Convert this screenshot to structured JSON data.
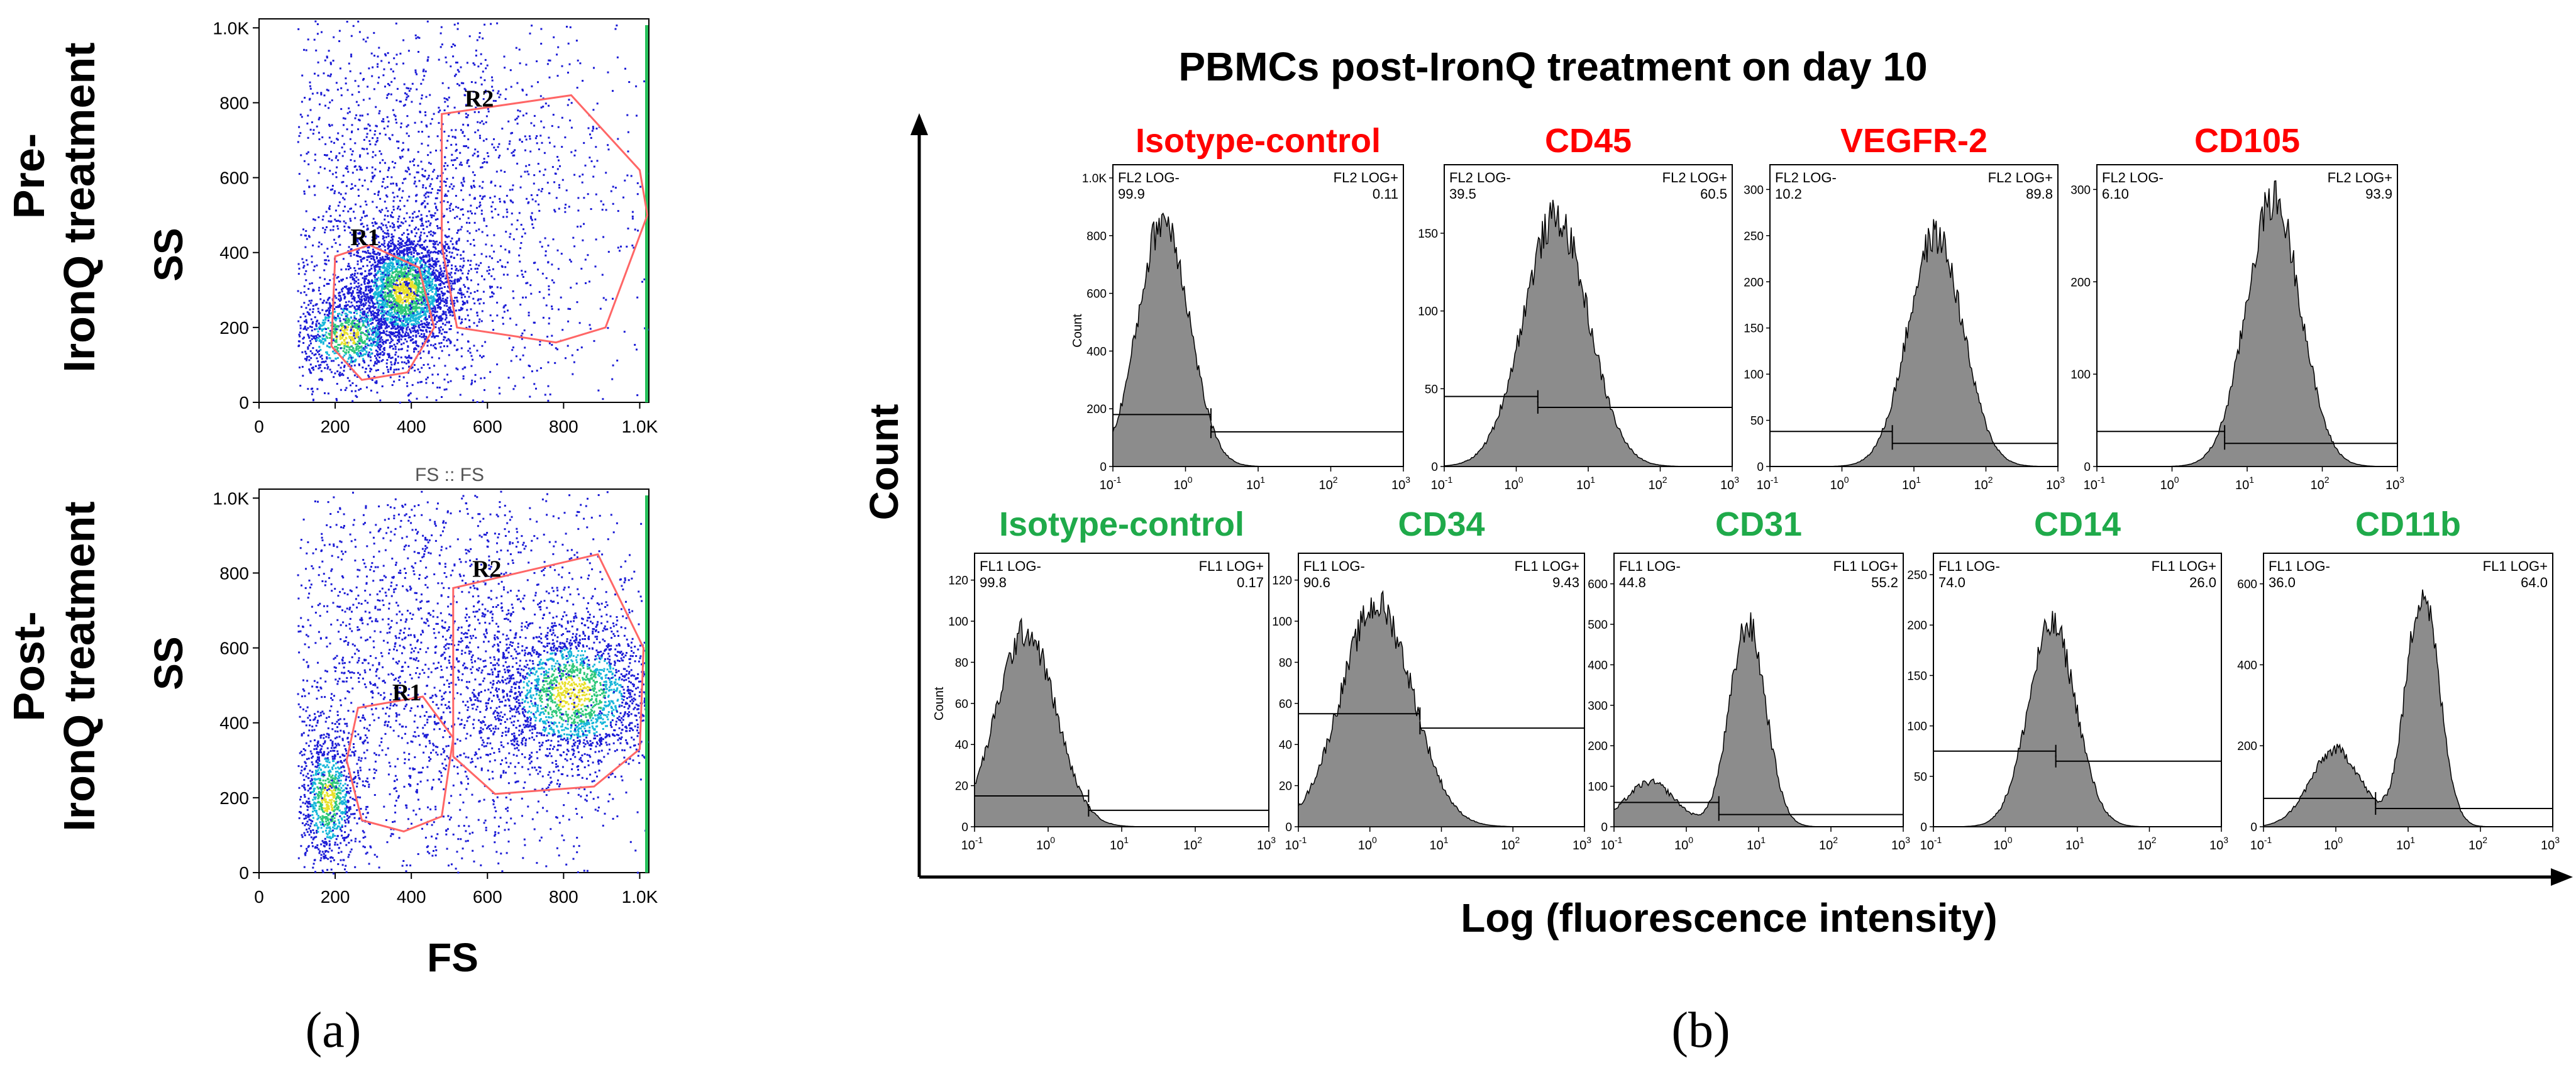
{
  "panel_a": {
    "label": "(a)",
    "x_axis_label": "FS",
    "y_axis_label": "SS",
    "between_plots_label": "FS :: FS",
    "ticks": [
      "0",
      "200",
      "400",
      "600",
      "800",
      "1.0K"
    ],
    "plots": [
      {
        "row_label_line1": "Pre-",
        "row_label_line2": "IronQ treatment",
        "gate1": "R1",
        "gate2": "R2"
      },
      {
        "row_label_line1": "Post-",
        "row_label_line2": "IronQ treatment",
        "gate1": "R1",
        "gate2": "R2"
      }
    ]
  },
  "panel_b": {
    "label": "(b)",
    "title": "PBMCs post-IronQ treatment on day 10",
    "y_axis_label": "Count",
    "x_axis_label": "Log (fluorescence intensity)",
    "x_ticks": [
      "10",
      "10",
      "10",
      "10",
      "10"
    ],
    "x_tick_exps": [
      "-1",
      "0",
      "1",
      "2",
      "3"
    ]
  },
  "colors": {
    "red_title": "#ff0000",
    "green_title": "#1faa4a",
    "hist_fill": "#8c8c8c",
    "gate_line": "#ff6666"
  },
  "chart_data": [
    {
      "type": "scatter",
      "title": "Pre-IronQ treatment",
      "xlabel": "FS",
      "ylabel": "SS",
      "xlim": [
        0,
        1024
      ],
      "ylim": [
        0,
        1024
      ],
      "gates": [
        "R1",
        "R2"
      ]
    },
    {
      "type": "scatter",
      "title": "Post-IronQ treatment",
      "xlabel": "FS",
      "ylabel": "SS",
      "xlim": [
        0,
        1024
      ],
      "ylim": [
        0,
        1024
      ],
      "gates": [
        "R1",
        "R2"
      ]
    },
    {
      "type": "area",
      "title": "Isotype-control",
      "title_color": "red",
      "ylabel": "Count",
      "neg_label": "FL2 LOG-",
      "pos_label": "FL2 LOG+",
      "neg_value": "99.9",
      "pos_value": "0.11",
      "yticks": [
        "0",
        "200",
        "400",
        "600",
        "800",
        "1.0K"
      ],
      "ylim": [
        0,
        1024
      ],
      "peak_log": -0.3,
      "peak_count": 860,
      "width": 0.35,
      "gate_log": 0.35,
      "marker_neg_y": 180,
      "marker_pos_y": 120
    },
    {
      "type": "area",
      "title": "CD45",
      "title_color": "red",
      "neg_label": "FL2 LOG-",
      "pos_label": "FL2 LOG+",
      "neg_value": "39.5",
      "pos_value": "60.5",
      "yticks": [
        "0",
        "50",
        "100",
        "150"
      ],
      "ylim": [
        0,
        190
      ],
      "peak_log": 0.55,
      "peak_count": 160,
      "width": 0.45,
      "gate_log": 0.3,
      "marker_neg_y": 45,
      "marker_pos_y": 38
    },
    {
      "type": "area",
      "title": "VEGFR-2",
      "title_color": "red",
      "neg_label": "FL2 LOG-",
      "pos_label": "FL2 LOG+",
      "neg_value": "10.2",
      "pos_value": "89.8",
      "yticks": [
        "0",
        "50",
        "100",
        "150",
        "200",
        "250",
        "300"
      ],
      "ylim": [
        0,
        320
      ],
      "peak_log": 1.3,
      "peak_count": 250,
      "width": 0.38,
      "gate_log": 0.7,
      "marker_neg_y": 38,
      "marker_pos_y": 25
    },
    {
      "type": "area",
      "title": "CD105",
      "title_color": "red",
      "neg_label": "FL2 LOG-",
      "pos_label": "FL2 LOG+",
      "neg_value": "6.10",
      "pos_value": "93.9",
      "yticks": [
        "0",
        "100",
        "200",
        "300"
      ],
      "ylim": [
        0,
        320
      ],
      "peak_log": 1.35,
      "peak_count": 290,
      "width": 0.36,
      "gate_log": 0.7,
      "marker_neg_y": 38,
      "marker_pos_y": 25
    },
    {
      "type": "area",
      "title": "Isotype-control",
      "title_color": "green",
      "ylabel": "Count",
      "neg_label": "FL1 LOG-",
      "pos_label": "FL1 LOG+",
      "neg_value": "99.8",
      "pos_value": "0.17",
      "yticks": [
        "0",
        "20",
        "40",
        "60",
        "80",
        "100",
        "120"
      ],
      "ylim": [
        0,
        130
      ],
      "peak_log": -0.3,
      "peak_count": 95,
      "width": 0.4,
      "gate_log": 0.55,
      "marker_neg_y": 15,
      "marker_pos_y": 8
    },
    {
      "type": "area",
      "title": "CD34",
      "title_color": "green",
      "neg_label": "FL1 LOG-",
      "pos_label": "FL1 LOG+",
      "neg_value": "90.6",
      "pos_value": "9.43",
      "yticks": [
        "0",
        "20",
        "40",
        "60",
        "80",
        "100",
        "120"
      ],
      "ylim": [
        0,
        130
      ],
      "peak_log": 0.1,
      "peak_count": 108,
      "width": 0.5,
      "gate_log": 0.7,
      "marker_neg_y": 55,
      "marker_pos_y": 48
    },
    {
      "type": "area",
      "title": "CD31",
      "title_color": "green",
      "neg_label": "FL1 LOG-",
      "pos_label": "FL1 LOG+",
      "neg_value": "44.8",
      "pos_value": "55.2",
      "yticks": [
        "0",
        "100",
        "200",
        "300",
        "400",
        "500",
        "600"
      ],
      "ylim": [
        0,
        660
      ],
      "peak_log": 0.85,
      "peak_count": 500,
      "width": 0.25,
      "peak2_log": -0.5,
      "peak2_count": 110,
      "width2": 0.35,
      "gate_log": 0.45,
      "marker_neg_y": 60,
      "marker_pos_y": 30
    },
    {
      "type": "area",
      "title": "CD14",
      "title_color": "green",
      "neg_label": "FL1 LOG-",
      "pos_label": "FL1 LOG+",
      "neg_value": "74.0",
      "pos_value": "26.0",
      "yticks": [
        "0",
        "50",
        "100",
        "150",
        "200",
        "250"
      ],
      "ylim": [
        0,
        265
      ],
      "peak_log": 0.65,
      "peak_count": 200,
      "width": 0.33,
      "gate_log": 0.7,
      "marker_neg_y": 75,
      "marker_pos_y": 65
    },
    {
      "type": "area",
      "title": "CD11b",
      "title_color": "green",
      "neg_label": "FL1 LOG-",
      "pos_label": "FL1 LOG+",
      "neg_value": "36.0",
      "pos_value": "64.0",
      "yticks": [
        "0",
        "200",
        "400",
        "600"
      ],
      "ylim": [
        0,
        660
      ],
      "peak_log": 1.2,
      "peak_count": 580,
      "width": 0.23,
      "peak2_log": 0.0,
      "peak2_count": 190,
      "width2": 0.35,
      "gate_log": 0.55,
      "marker_neg_y": 70,
      "marker_pos_y": 45
    }
  ]
}
